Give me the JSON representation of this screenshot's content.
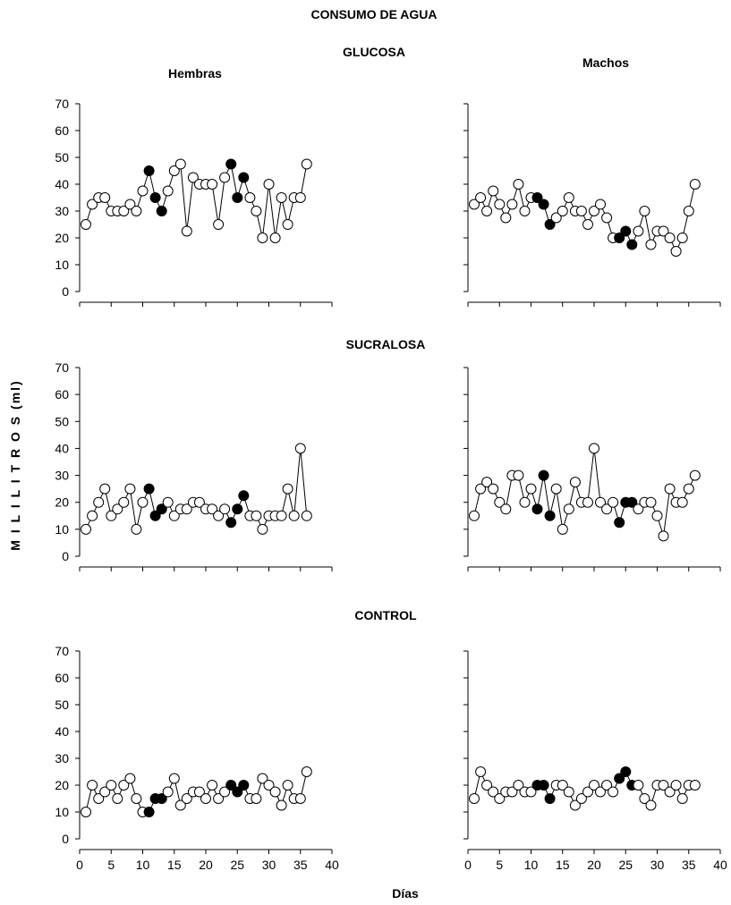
{
  "chart_data": {
    "type": "scatter",
    "title": "CONSUMO DE AGUA",
    "ylabel": "M I L I L I T R O S (ml)",
    "xlabel": "Días",
    "column_labels": [
      "Hembras",
      "Machos"
    ],
    "xlim": [
      0,
      40
    ],
    "ylim": [
      0,
      70
    ],
    "xticks": [
      0,
      5,
      10,
      15,
      20,
      25,
      30,
      35,
      40
    ],
    "yticks": [
      0,
      10,
      20,
      30,
      40,
      50,
      60,
      70
    ],
    "marker_legend": {
      "open": "#ffffff",
      "filled": "#000000"
    },
    "groups": [
      {
        "name": "GLUCOSA",
        "panels": [
          {
            "sex": "Hembras",
            "x": [
              1,
              2,
              3,
              4,
              5,
              6,
              7,
              8,
              9,
              10,
              11,
              12,
              13,
              14,
              15,
              16,
              17,
              18,
              19,
              20,
              21,
              22,
              23,
              24,
              25,
              26,
              27,
              28,
              29,
              30,
              31,
              32,
              33,
              34,
              35,
              36
            ],
            "y": [
              25,
              32.5,
              35,
              35,
              30,
              30,
              30,
              32.5,
              30,
              37.5,
              45,
              35,
              30,
              37.5,
              45,
              47.5,
              22.5,
              42.5,
              40,
              40,
              40,
              25,
              42.5,
              47.5,
              35,
              42.5,
              35,
              30,
              20,
              40,
              20,
              35,
              25,
              35,
              35,
              47.5
            ],
            "filled": [
              11,
              12,
              13,
              24,
              25,
              26
            ]
          },
          {
            "sex": "Machos",
            "x": [
              1,
              2,
              3,
              4,
              5,
              6,
              7,
              8,
              9,
              10,
              11,
              12,
              13,
              14,
              15,
              16,
              17,
              18,
              19,
              20,
              21,
              22,
              23,
              24,
              25,
              26,
              27,
              28,
              29,
              30,
              31,
              32,
              33,
              34,
              35,
              36
            ],
            "y": [
              32.5,
              35,
              30,
              37.5,
              32.5,
              27.5,
              32.5,
              40,
              30,
              35,
              35,
              32.5,
              25,
              27.5,
              30,
              35,
              30,
              30,
              25,
              30,
              32.5,
              27.5,
              20,
              20,
              22.5,
              17.5,
              22.5,
              30,
              17.5,
              22.5,
              22.5,
              20,
              15,
              20,
              30,
              40
            ],
            "filled": [
              11,
              12,
              13,
              24,
              25,
              26
            ]
          }
        ]
      },
      {
        "name": "SUCRALOSA",
        "panels": [
          {
            "sex": "Hembras",
            "x": [
              1,
              2,
              3,
              4,
              5,
              6,
              7,
              8,
              9,
              10,
              11,
              12,
              13,
              14,
              15,
              16,
              17,
              18,
              19,
              20,
              21,
              22,
              23,
              24,
              25,
              26,
              27,
              28,
              29,
              30,
              31,
              32,
              33,
              34,
              35,
              36
            ],
            "y": [
              10,
              15,
              20,
              25,
              15,
              17.5,
              20,
              25,
              10,
              20,
              25,
              15,
              17.5,
              20,
              15,
              17.5,
              17.5,
              20,
              20,
              17.5,
              17.5,
              15,
              17.5,
              12.5,
              17.5,
              22.5,
              15,
              15,
              10,
              15,
              15,
              15,
              25,
              15,
              40,
              15
            ],
            "filled": [
              11,
              12,
              13,
              24,
              25,
              26
            ]
          },
          {
            "sex": "Machos",
            "x": [
              1,
              2,
              3,
              4,
              5,
              6,
              7,
              8,
              9,
              10,
              11,
              12,
              13,
              14,
              15,
              16,
              17,
              18,
              19,
              20,
              21,
              22,
              23,
              24,
              25,
              26,
              27,
              28,
              29,
              30,
              31,
              32,
              33,
              34,
              35,
              36
            ],
            "y": [
              15,
              25,
              27.5,
              25,
              20,
              17.5,
              30,
              30,
              20,
              25,
              17.5,
              30,
              15,
              25,
              10,
              17.5,
              27.5,
              20,
              20,
              40,
              20,
              17.5,
              20,
              12.5,
              20,
              20,
              17.5,
              20,
              20,
              15,
              7.5,
              25,
              20,
              20,
              25,
              30
            ],
            "filled": [
              11,
              12,
              13,
              24,
              25,
              26
            ]
          }
        ]
      },
      {
        "name": "CONTROL",
        "panels": [
          {
            "sex": "Hembras",
            "x": [
              1,
              2,
              3,
              4,
              5,
              6,
              7,
              8,
              9,
              10,
              11,
              12,
              13,
              14,
              15,
              16,
              17,
              18,
              19,
              20,
              21,
              22,
              23,
              24,
              25,
              26,
              27,
              28,
              29,
              30,
              31,
              32,
              33,
              34,
              35,
              36
            ],
            "y": [
              10,
              20,
              15,
              17.5,
              20,
              15,
              20,
              22.5,
              15,
              10,
              10,
              15,
              15,
              17.5,
              22.5,
              12.5,
              15,
              17.5,
              17.5,
              15,
              20,
              15,
              17.5,
              20,
              17.5,
              20,
              15,
              15,
              22.5,
              20,
              17.5,
              12.5,
              20,
              15,
              15,
              25
            ],
            "filled": [
              11,
              12,
              13,
              24,
              25,
              26
            ]
          },
          {
            "sex": "Machos",
            "x": [
              1,
              2,
              3,
              4,
              5,
              6,
              7,
              8,
              9,
              10,
              11,
              12,
              13,
              14,
              15,
              16,
              17,
              18,
              19,
              20,
              21,
              22,
              23,
              24,
              25,
              26,
              27,
              28,
              29,
              30,
              31,
              32,
              33,
              34,
              35,
              36
            ],
            "y": [
              15,
              25,
              20,
              17.5,
              15,
              17.5,
              17.5,
              20,
              17.5,
              17.5,
              20,
              20,
              15,
              20,
              20,
              17.5,
              12.5,
              15,
              17.5,
              20,
              17.5,
              20,
              17.5,
              22.5,
              25,
              20,
              20,
              15,
              12.5,
              20,
              20,
              17.5,
              20,
              15,
              20,
              20
            ],
            "filled": [
              11,
              12,
              13,
              24,
              25,
              26
            ]
          }
        ]
      }
    ]
  }
}
